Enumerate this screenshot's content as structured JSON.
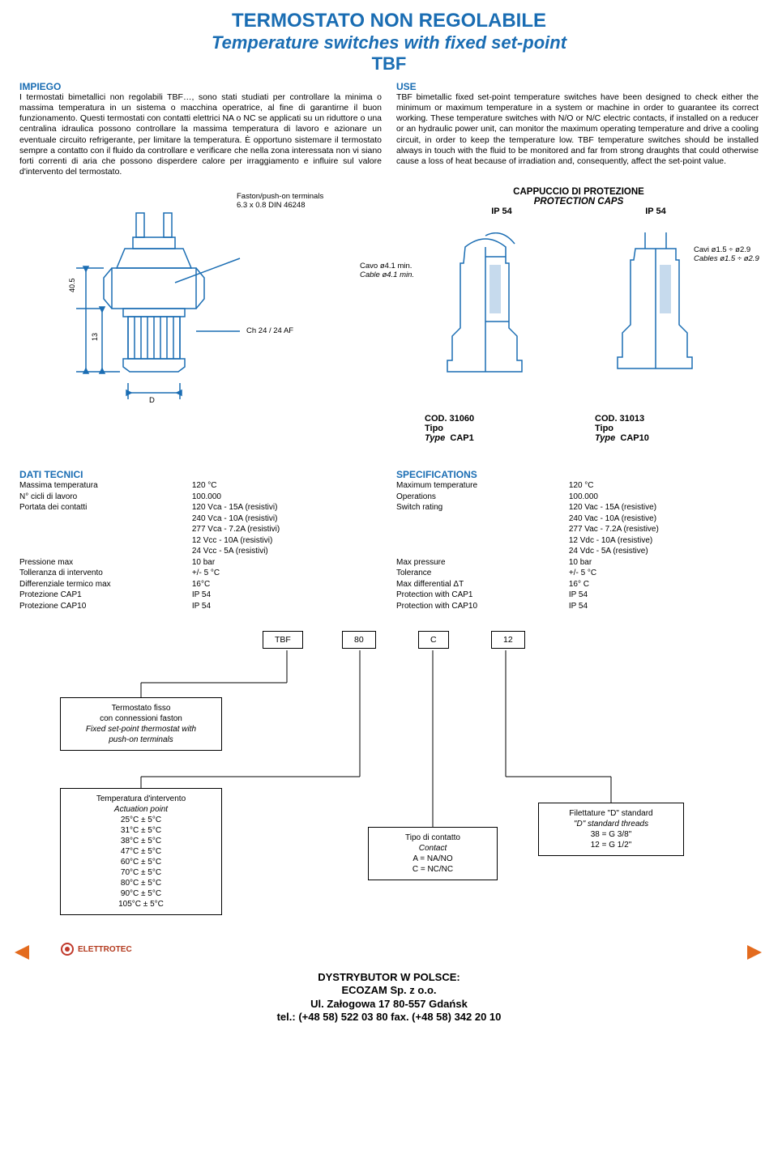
{
  "title": {
    "main": "TERMOSTATO NON REGOLABILE",
    "sub": "Temperature switches with fixed set-point",
    "code": "TBF"
  },
  "impiego": {
    "head": "IMPIEGO",
    "text": "I termostati bimetallici non regolabili TBF…, sono stati studiati per controllare la minima o massima temperatura in un sistema o macchina operatrice, al fine di garantirne il buon funzionamento. Questi termostati con contatti elettrici NA o NC se applicati su un riduttore o una centralina idraulica possono controllare la massima temperatura di lavoro e azionare un eventuale circuito refrigerante, per limitare la temperatura. È opportuno sistemare il termostato sempre a contatto con il fluido da controllare e verificare che nella zona interessata non vi siano forti correnti di aria che possono disperdere calore per irraggiamento e influire sul valore d'intervento del termostato."
  },
  "use": {
    "head": "USE",
    "text": "TBF bimetallic fixed set-point temperature switches have been designed to check either the minimum or maximum temperature in a system or machine in order to guarantee its correct working. These temperature switches with N/O or N/C electric contacts, if installed on a reducer or an hydraulic power unit, can monitor the maximum operating temperature and drive a cooling circuit, in order to keep the temperature low. TBF temperature switches should be installed always in touch with the fluid to be monitored and far from strong draughts that could otherwise cause a loss of heat because of irradiation and, consequently, affect the set-point value."
  },
  "fig_main": {
    "faston1": "Faston/push-on terminals",
    "faston2": "6.3 x 0.8 DIN 46248",
    "ch": "Ch 24 / 24 AF",
    "d": "D",
    "h405": "40.5",
    "h13": "13"
  },
  "caps": {
    "title_it": "CAPPUCCIO DI PROTEZIONE",
    "title_en": "PROTECTION CAPS",
    "ip": "IP 54",
    "cavo": "Cavo   ø4.1 min.",
    "cable": "Cable  ø4.1 min.",
    "cavi": "Cavi    ø1.5 ÷ ø2.9",
    "cables": "Cables ø1.5 ÷ ø2.9",
    "cod1_code": "COD. 31060",
    "cod1_tipo": "Tipo",
    "cod1_type": "Type",
    "cod1_val": "CAP1",
    "cod2_code": "COD. 31013",
    "cod2_tipo": "Tipo",
    "cod2_type": "Type",
    "cod2_val": "CAP10"
  },
  "dati": {
    "head": "DATI TECNICI",
    "rows": [
      [
        "Massima temperatura",
        "120 °C"
      ],
      [
        "N° cicli di lavoro",
        "100.000"
      ],
      [
        "Portata dei contatti",
        "120 Vca - 15A (resistivi)"
      ],
      [
        "",
        "240 Vca - 10A (resistivi)"
      ],
      [
        "",
        "277 Vca - 7.2A (resistivi)"
      ],
      [
        "",
        "12 Vcc - 10A (resistivi)"
      ],
      [
        "",
        "24 Vcc - 5A (resistivi)"
      ],
      [
        "Pressione max",
        "10 bar"
      ],
      [
        "Tolleranza di intervento",
        "+/- 5 °C"
      ],
      [
        "Differenziale termico max",
        "16°C"
      ],
      [
        "Protezione CAP1",
        "IP 54"
      ],
      [
        "Protezione CAP10",
        "IP 54"
      ]
    ]
  },
  "specs": {
    "head": "SPECIFICATIONS",
    "rows": [
      [
        "Maximum temperature",
        "120 °C"
      ],
      [
        "Operations",
        "100.000"
      ],
      [
        "Switch rating",
        "120 Vac - 15A (resistive)"
      ],
      [
        "",
        "240 Vac - 10A (resistive)"
      ],
      [
        "",
        "277 Vac - 7.2A (resistive)"
      ],
      [
        "",
        "12 Vdc - 10A (resistive)"
      ],
      [
        "",
        "24 Vdc - 5A (resistive)"
      ],
      [
        "Max pressure",
        "10 bar"
      ],
      [
        "Tolerance",
        "+/- 5 °C"
      ],
      [
        "Max differential ΔT",
        "16° C"
      ],
      [
        "Protection with CAP1",
        "IP 54"
      ],
      [
        "Protection with CAP10",
        "IP 54"
      ]
    ]
  },
  "order": {
    "cells": [
      "TBF",
      "80",
      "C",
      "12"
    ],
    "box1_l1": "Termostato fisso",
    "box1_l2": "con connessioni faston",
    "box1_l3": "Fixed set-point thermostat with",
    "box1_l4": "push-on terminals",
    "box2_head_it": "Temperatura d'intervento",
    "box2_head_en": "Actuation point",
    "box2_vals": [
      "25°C ± 5°C",
      "31°C ± 5°C",
      "38°C ± 5°C",
      "47°C ± 5°C",
      "60°C ± 5°C",
      "70°C ± 5°C",
      "80°C ± 5°C",
      "90°C ± 5°C",
      "105°C ± 5°C"
    ],
    "box3_l1": "Tipo di contatto",
    "box3_l2": "Contact",
    "box3_l3": "A = NA/NO",
    "box3_l4": "C = NC/NC",
    "box4_l1": "Filettature \"D\" standard",
    "box4_l2": "\"D\" standard threads",
    "box4_l3": "38 =  G 3/8\"",
    "box4_l4": "12 =  G 1/2\""
  },
  "footer": {
    "l1": "DYSTRYBUTOR W POLSCE:",
    "l2": "ECOZAM Sp. z o.o.",
    "l3": "Ul. Załogowa 17   80-557 Gdańsk",
    "l4": "tel.: (+48 58) 522 03 80  fax. (+48 58) 342 20 10"
  },
  "logo": "ELETTROTEC",
  "colors": {
    "blue": "#1a6db3",
    "orange": "#e36b1e",
    "logo": "#c0392b"
  }
}
